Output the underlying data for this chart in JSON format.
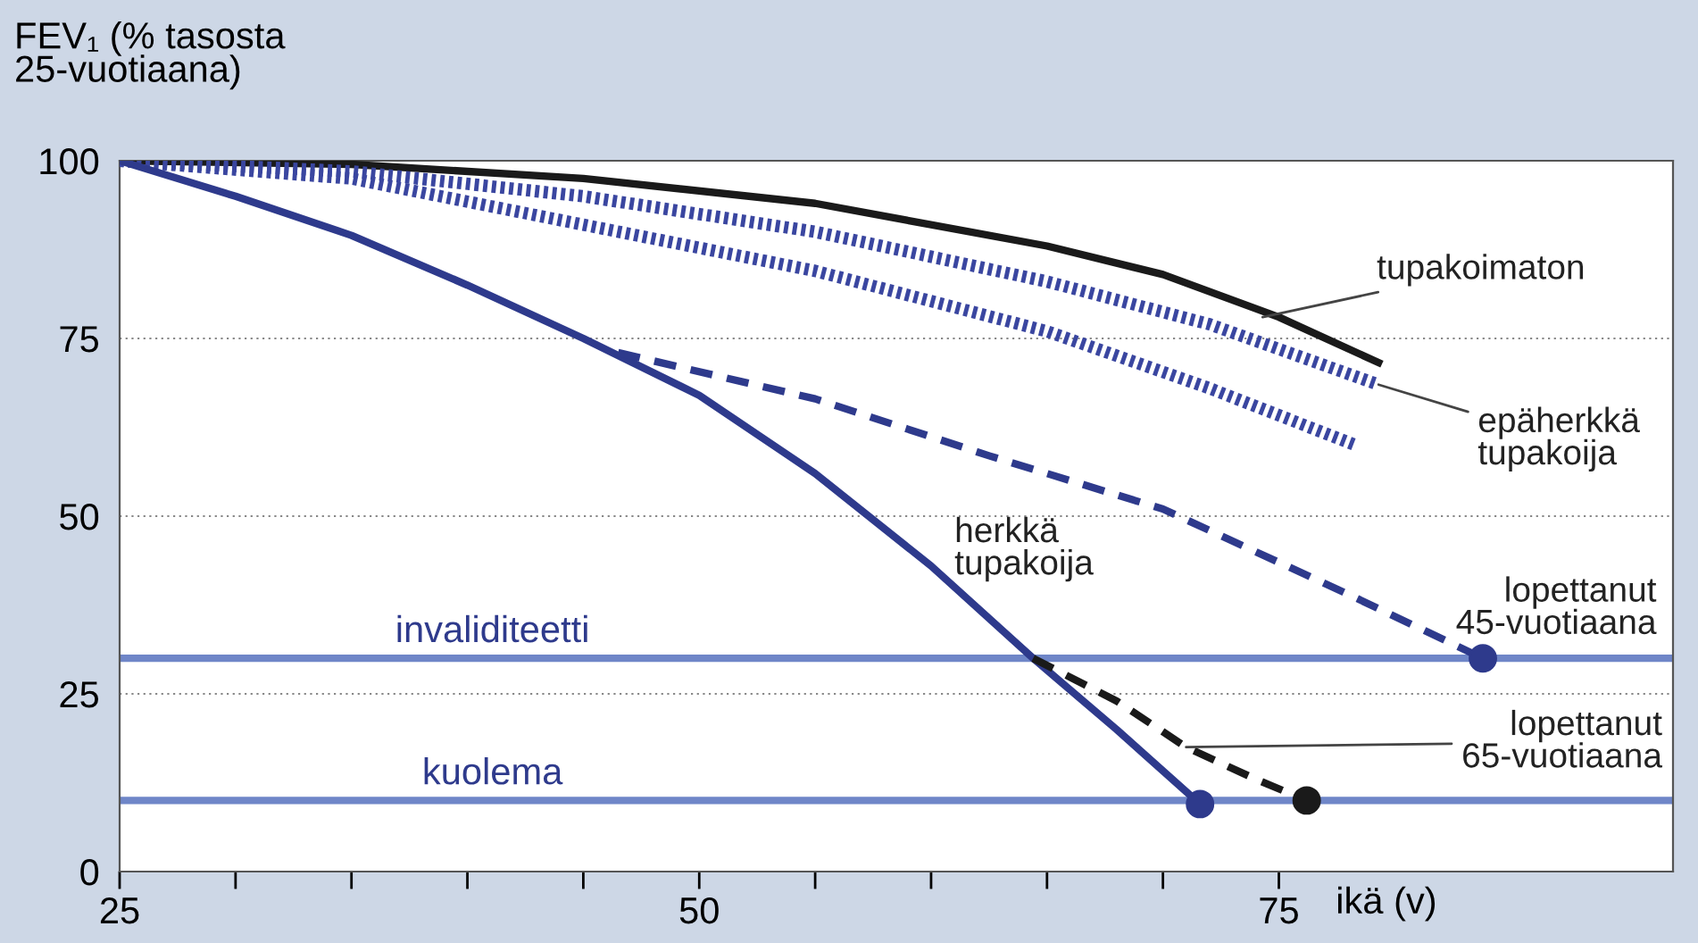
{
  "chart_data": {
    "type": "line",
    "ylabel": "FEV₁ (% tasosta\n25-vuotiaana)",
    "xlabel": "ikä (v)",
    "xlim": [
      25,
      92
    ],
    "ylim": [
      0,
      100
    ],
    "xticks": [
      25,
      {
        "value": 30,
        "label": null
      },
      {
        "value": 35,
        "label": null
      },
      {
        "value": 40,
        "label": null
      },
      {
        "value": 45,
        "label": null
      },
      50,
      {
        "value": 55,
        "label": null
      },
      {
        "value": 60,
        "label": null
      },
      {
        "value": 65,
        "label": null
      },
      {
        "value": 70,
        "label": null
      },
      75
    ],
    "yticks": [
      0,
      25,
      50,
      75,
      100
    ],
    "grid": "y",
    "legend": false,
    "series": [
      {
        "type": "line",
        "color": "#1a1a1a",
        "line_style": "solid",
        "x": [
          25,
          35,
          45,
          55,
          65,
          70,
          75,
          79.3
        ],
        "values": [
          100,
          99.5,
          97.5,
          94,
          88,
          84,
          78,
          71.6
        ]
      },
      {
        "type": "line",
        "color": "#3a46a0",
        "line_style": "dotted",
        "x": [
          25,
          35,
          45,
          55,
          65,
          72,
          79.3
        ],
        "values": [
          100,
          98.5,
          95,
          90,
          83,
          77,
          68.5
        ]
      },
      {
        "type": "line",
        "color": "#3a46a0",
        "line_style": "dotted",
        "x": [
          25,
          35,
          45,
          55,
          65,
          72,
          78.3
        ],
        "values": [
          100,
          97.5,
          91,
          84.5,
          76,
          68,
          60
        ]
      },
      {
        "type": "line",
        "color": "#2e3a8c",
        "line_style": "solid",
        "x": [
          25,
          30,
          35,
          40,
          45,
          50,
          55,
          60,
          64.4,
          68,
          71.6
        ],
        "values": [
          100,
          95,
          89.5,
          82.5,
          75,
          67,
          56,
          43,
          30,
          20,
          9.5
        ]
      },
      {
        "type": "line",
        "color": "#2e3a8c",
        "line_style": "dashed",
        "x": [
          46.5,
          55,
          62.5,
          70,
          78,
          83.8
        ],
        "values": [
          73,
          66.5,
          58.5,
          51,
          39,
          30
        ]
      },
      {
        "type": "line",
        "color": "#1a1a1a",
        "line_style": "dashed",
        "x": [
          64.4,
          68,
          71,
          74,
          76.2
        ],
        "values": [
          30,
          24,
          17.5,
          13,
          10
        ]
      },
      {
        "type": "scatter",
        "color": "#2e3a8c",
        "marker": "circle",
        "x": [
          71.6,
          83.8
        ],
        "values": [
          9.5,
          30
        ]
      },
      {
        "type": "scatter",
        "color": "#1a1a1a",
        "marker": "circle",
        "x": [
          76.2
        ],
        "values": [
          10
        ]
      }
    ],
    "ref_lines": [
      {
        "axis": "y",
        "value": 30,
        "label": "invaliditeetti",
        "color": "#6f86c8"
      },
      {
        "axis": "y",
        "value": 10,
        "label": "kuolema",
        "color": "#6f86c8"
      }
    ],
    "annotations": [
      {
        "text": "tupakoimaton",
        "x": 74.3,
        "y": 78
      },
      {
        "text": "epäherkkä\ntupakoija",
        "x": 79.3,
        "y": 68.5
      },
      {
        "text": "herkkä\ntupakoija",
        "x": 57.8,
        "y": 48.5
      },
      {
        "text": "lopettanut\n45-vuotiaana",
        "x": 83.8,
        "y": 30
      },
      {
        "text": "lopettanut\n65-vuotiaana",
        "x": 71,
        "y": 17.5
      }
    ]
  }
}
